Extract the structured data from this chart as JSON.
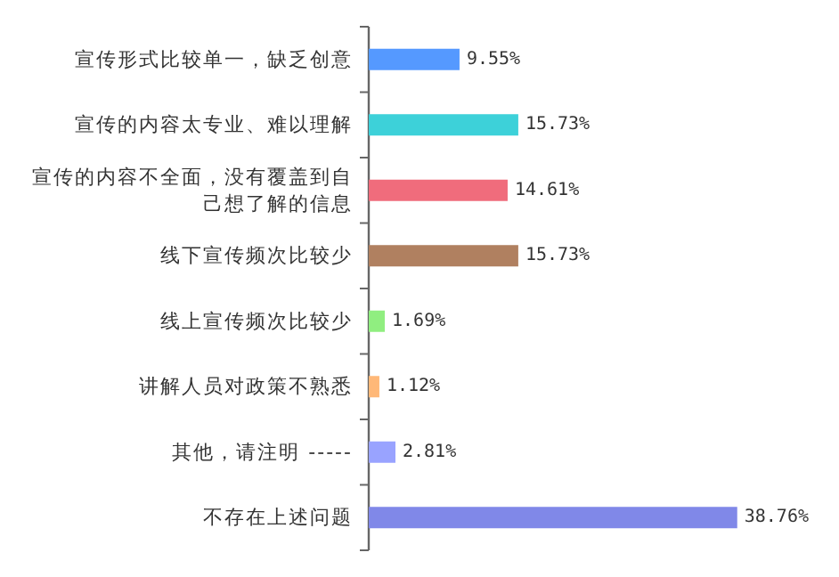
{
  "chart_data": {
    "type": "bar",
    "orientation": "horizontal",
    "categories": [
      "宣传形式比较单一，缺乏创意",
      "宣传的内容太专业、难以理解",
      "宣传的内容不全面，没有覆盖到自己想了解的信息",
      "线下宣传频次比较少",
      "线上宣传频次比较少",
      "讲解人员对政策不熟悉",
      "其他，请注明 -----",
      "不存在上述问题"
    ],
    "values": [
      9.55,
      15.73,
      14.61,
      15.73,
      1.69,
      1.12,
      2.81,
      38.76
    ],
    "colors": [
      "#5599ff",
      "#3dd1d9",
      "#f06c7c",
      "#b08060",
      "#90ee80",
      "#ffb878",
      "#99a3ff",
      "#8088e8"
    ],
    "value_labels": [
      "9.55%",
      "15.73%",
      "14.61%",
      "15.73%",
      "1.69%",
      "1.12%",
      "2.81%",
      "38.76%"
    ]
  }
}
